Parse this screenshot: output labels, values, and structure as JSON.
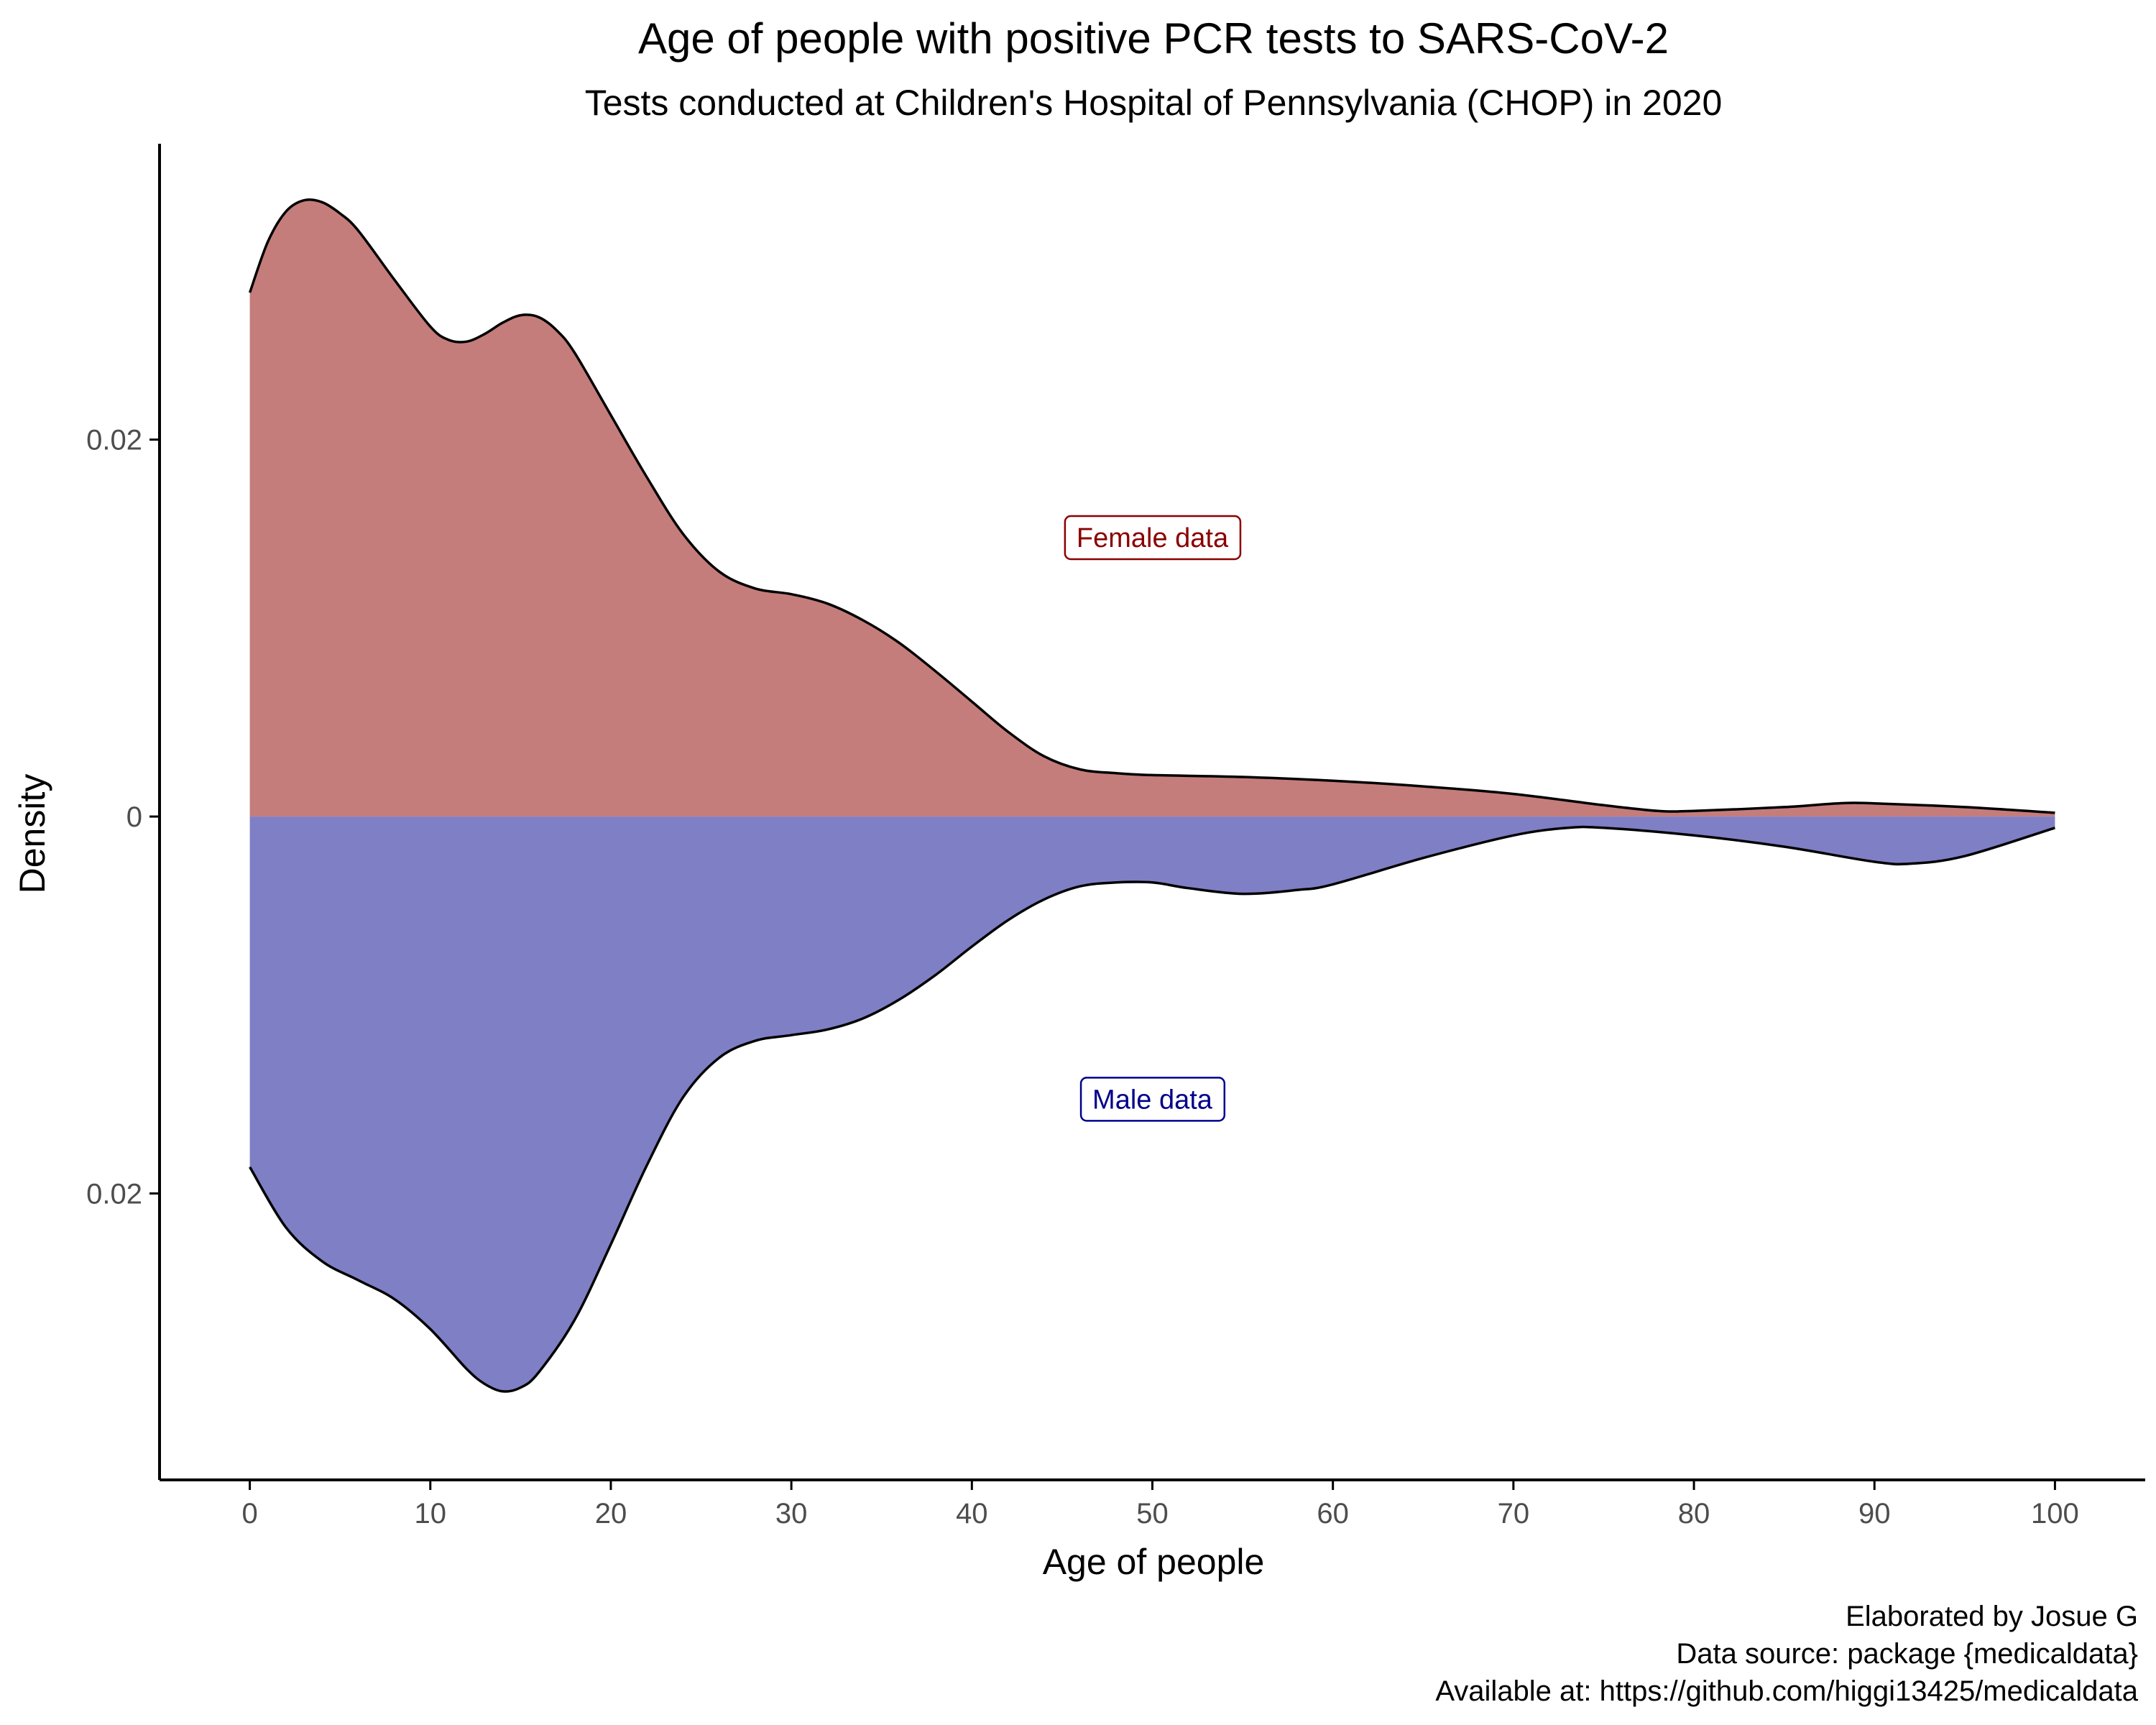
{
  "chart_data": {
    "type": "area",
    "title": "Age of people with positive PCR tests to SARS-CoV-2",
    "subtitle": "Tests conducted at Children's Hospital of Pennsylvania (CHOP) in 2020",
    "xlabel": "Age of people",
    "ylabel": "Density",
    "xlim": [
      -5,
      105
    ],
    "ylim": [
      -0.0352,
      0.0357
    ],
    "x_ticks": [
      0,
      10,
      20,
      30,
      40,
      50,
      60,
      70,
      80,
      90,
      100
    ],
    "x_tick_labels": [
      "0",
      "10",
      "20",
      "30",
      "40",
      "50",
      "60",
      "70",
      "80",
      "90",
      "100"
    ],
    "y_ticks": [
      0.02,
      0,
      -0.02
    ],
    "y_tick_labels": [
      "0.02",
      "0",
      "0.02"
    ],
    "grid": false,
    "legend": "none",
    "series": [
      {
        "color": "#c47d7b",
        "direction": "up",
        "x": [
          0,
          1,
          2,
          3,
          4,
          5,
          6,
          8,
          10,
          11,
          12,
          13,
          14,
          15,
          16,
          17,
          18,
          20,
          22,
          24,
          26,
          28,
          30,
          32,
          34,
          36,
          38,
          40,
          42,
          44,
          46,
          48,
          50,
          55,
          60,
          65,
          70,
          75,
          78,
          80,
          85,
          88,
          90,
          95,
          100
        ],
        "values": [
          0.0278,
          0.0305,
          0.0321,
          0.0327,
          0.0326,
          0.032,
          0.0311,
          0.0285,
          0.026,
          0.0253,
          0.0252,
          0.0256,
          0.0262,
          0.0266,
          0.0265,
          0.0258,
          0.0246,
          0.0213,
          0.018,
          0.015,
          0.013,
          0.0121,
          0.0118,
          0.0113,
          0.0104,
          0.0092,
          0.0077,
          0.0061,
          0.0045,
          0.0032,
          0.0025,
          0.0023,
          0.0022,
          0.0021,
          0.0019,
          0.0016,
          0.0012,
          0.0006,
          0.0003,
          0.0003,
          0.0005,
          0.0007,
          0.0007,
          0.0005,
          0.0002
        ]
      },
      {
        "color": "#7f7fc5",
        "direction": "down",
        "x": [
          0,
          2,
          4,
          6,
          8,
          10,
          12,
          13,
          14,
          15,
          16,
          18,
          20,
          22,
          24,
          26,
          28,
          30,
          32,
          34,
          36,
          38,
          40,
          42,
          44,
          46,
          48,
          50,
          52,
          55,
          58,
          60,
          65,
          70,
          73,
          75,
          80,
          85,
          90,
          92,
          95,
          100
        ],
        "values": [
          0.0186,
          0.0218,
          0.0236,
          0.0246,
          0.0256,
          0.0272,
          0.0293,
          0.0301,
          0.0305,
          0.0303,
          0.0295,
          0.0267,
          0.0227,
          0.0185,
          0.0149,
          0.0128,
          0.0119,
          0.0116,
          0.0113,
          0.0107,
          0.0097,
          0.0084,
          0.0069,
          0.0055,
          0.0044,
          0.0037,
          0.0035,
          0.0035,
          0.0038,
          0.0041,
          0.0039,
          0.0036,
          0.0022,
          0.001,
          0.0006,
          0.0006,
          0.001,
          0.0016,
          0.0024,
          0.0025,
          0.0021,
          0.0006
        ]
      }
    ],
    "annotations": [
      {
        "text": "Female data",
        "x": 50,
        "y": 0.0148,
        "color": "#8b0000"
      },
      {
        "text": "Male data",
        "x": 50,
        "y": -0.015,
        "color": "#00008b"
      }
    ],
    "caption": [
      "Elaborated by Josue G",
      "Data source: package {medicaldata}",
      "Available at: https://github.com/higgi13425/medicaldata"
    ]
  }
}
